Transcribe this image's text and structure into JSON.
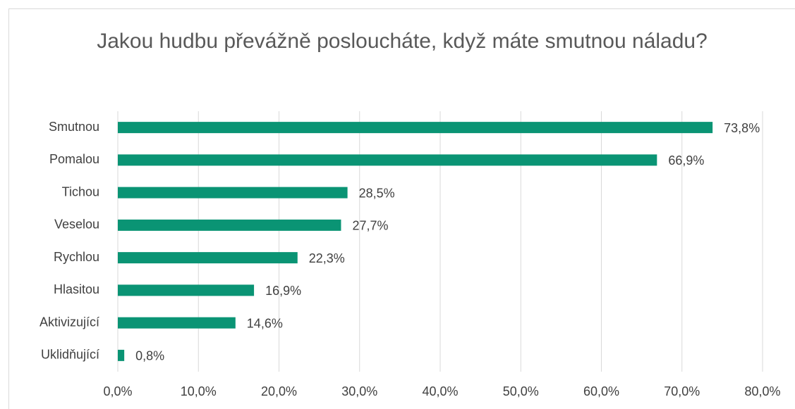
{
  "chart_data": {
    "type": "hbar",
    "title": "Jakou hudbu převážně posloucháte, když máte smutnou náladu?",
    "categories": [
      "Smutnou",
      "Pomalou",
      "Tichou",
      "Veselou",
      "Rychlou",
      "Hlasitou",
      "Aktivizující",
      "Uklidňující"
    ],
    "values": [
      73.8,
      66.9,
      28.5,
      27.7,
      22.3,
      16.9,
      14.6,
      0.8
    ],
    "value_labels": [
      "73,8%",
      "66,9%",
      "28,5%",
      "27,7%",
      "22,3%",
      "16,9%",
      "14,6%",
      "0,8%"
    ],
    "color": "#0a9474",
    "xlim": [
      0,
      80
    ],
    "xticks": [
      {
        "value": 0,
        "label": "0,0%"
      },
      {
        "value": 10,
        "label": "10,0%"
      },
      {
        "value": 20,
        "label": "20,0%"
      },
      {
        "value": 30,
        "label": "30,0%"
      },
      {
        "value": 40,
        "label": "40,0%"
      },
      {
        "value": 50,
        "label": "50,0%"
      },
      {
        "value": 60,
        "label": "60,0%"
      },
      {
        "value": 70,
        "label": "70,0%"
      },
      {
        "value": 80,
        "label": "80,0%"
      }
    ],
    "grid": true
  }
}
